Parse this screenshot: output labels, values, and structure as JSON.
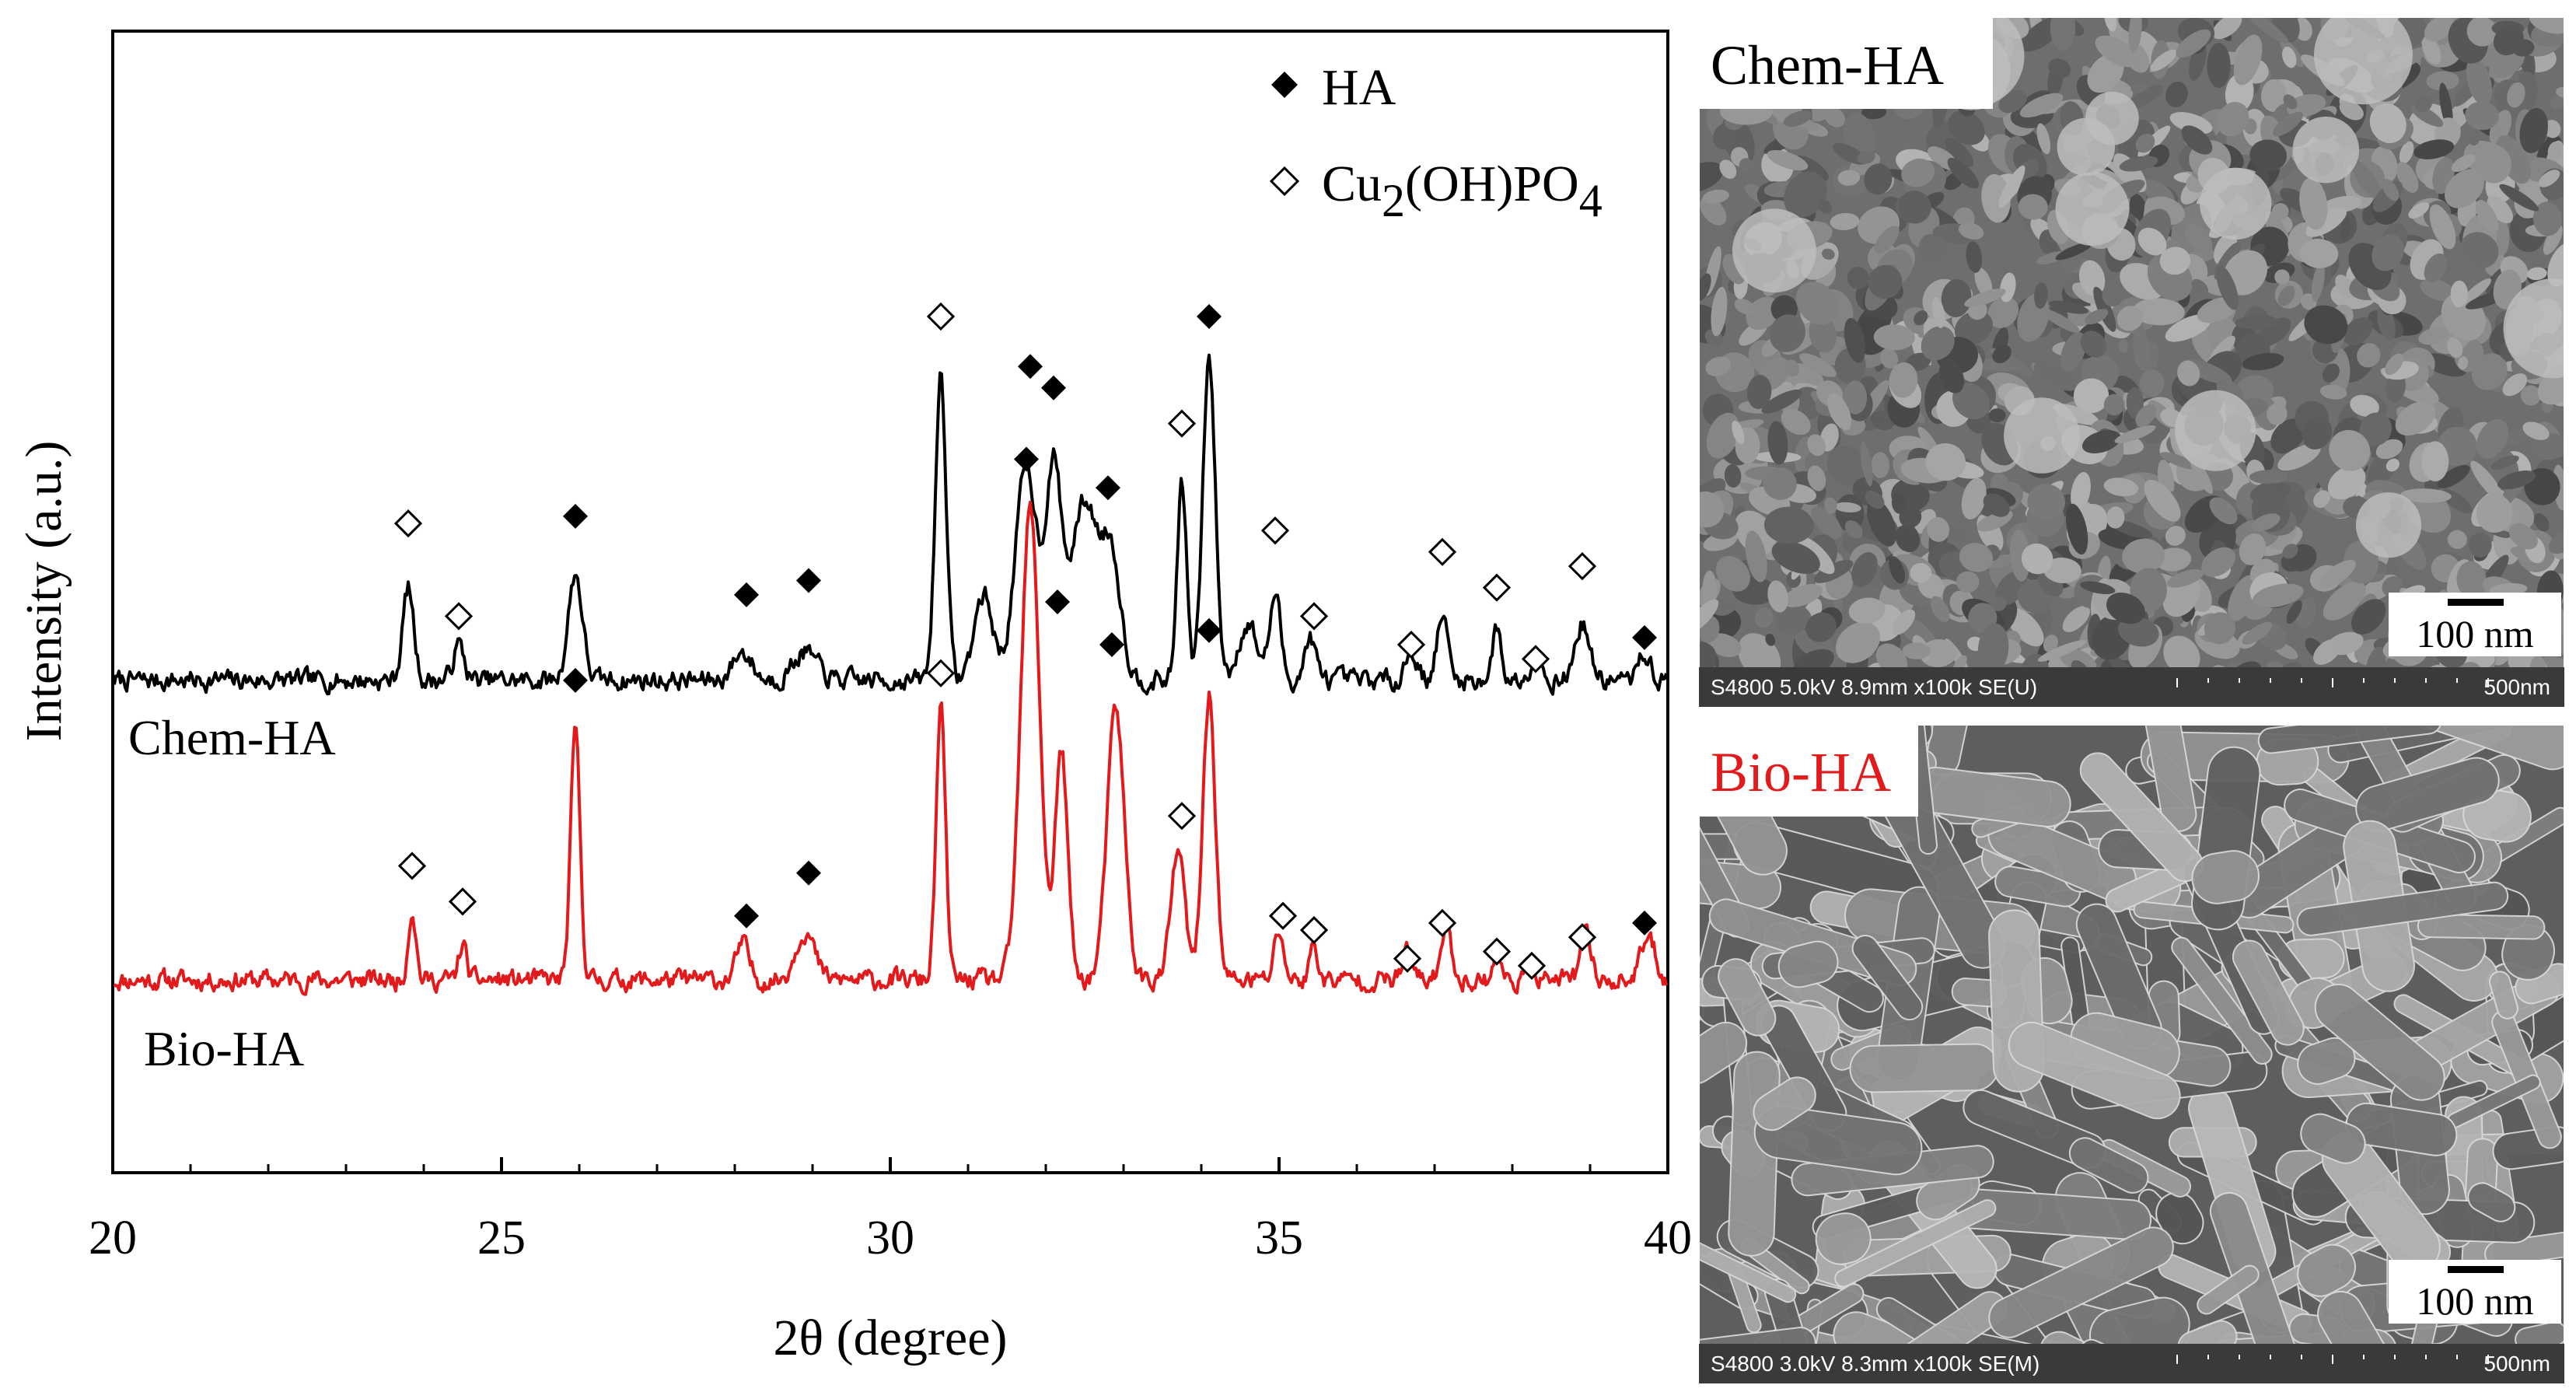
{
  "chart_data": {
    "type": "line",
    "xlabel": "2θ (degree)",
    "ylabel": "Intensity (a.u.)",
    "xlim": [
      20,
      40
    ],
    "ylim": [
      0,
      160
    ],
    "x_ticks": [
      20,
      25,
      30,
      35,
      40
    ],
    "y_ticks_shown": false,
    "grid": false,
    "legend_position": "top-right",
    "legend": [
      {
        "marker": "filled-diamond",
        "label": "HA",
        "color": "#000000"
      },
      {
        "marker": "open-diamond",
        "label_main": "Cu",
        "label_sub1": "2",
        "label_mid": "(OH)PO",
        "label_sub2": "4",
        "color": "#000000"
      }
    ],
    "series": [
      {
        "name": "Chem-HA",
        "color": "#000000",
        "baseline": 69,
        "noise": 2.5,
        "seed": 7,
        "peaks": [
          [
            23.8,
            13,
            0.07
          ],
          [
            24.45,
            5,
            0.07
          ],
          [
            25.95,
            15,
            0.09
          ],
          [
            28.1,
            4,
            0.12
          ],
          [
            28.9,
            4,
            0.15
          ],
          [
            30.65,
            43,
            0.07
          ],
          [
            31.2,
            12,
            0.12
          ],
          [
            31.75,
            30,
            0.14
          ],
          [
            32.1,
            28,
            0.1
          ],
          [
            32.5,
            25,
            0.18
          ],
          [
            32.85,
            16,
            0.12
          ],
          [
            33.75,
            28,
            0.06
          ],
          [
            34.1,
            45,
            0.08
          ],
          [
            34.6,
            8,
            0.12
          ],
          [
            34.95,
            12,
            0.07
          ],
          [
            35.4,
            6,
            0.07
          ],
          [
            36.7,
            4,
            0.08
          ],
          [
            37.1,
            9,
            0.07
          ],
          [
            37.8,
            7,
            0.06
          ],
          [
            38.3,
            4,
            0.07
          ],
          [
            38.9,
            8,
            0.09
          ],
          [
            39.7,
            4,
            0.07
          ]
        ],
        "markers": [
          {
            "x": 23.8,
            "type": "open",
            "y": 91
          },
          {
            "x": 24.45,
            "type": "open",
            "y": 78
          },
          {
            "x": 25.95,
            "type": "filled",
            "y": 92
          },
          {
            "x": 28.15,
            "type": "filled",
            "y": 81
          },
          {
            "x": 28.95,
            "type": "filled",
            "y": 83
          },
          {
            "x": 30.65,
            "type": "open",
            "y": 120
          },
          {
            "x": 31.8,
            "type": "filled",
            "y": 113
          },
          {
            "x": 32.1,
            "type": "filled",
            "y": 110
          },
          {
            "x": 32.8,
            "type": "filled",
            "y": 96
          },
          {
            "x": 33.75,
            "type": "open",
            "y": 105
          },
          {
            "x": 34.1,
            "type": "filled",
            "y": 120
          },
          {
            "x": 34.95,
            "type": "open",
            "y": 90
          },
          {
            "x": 35.45,
            "type": "open",
            "y": 78
          },
          {
            "x": 36.7,
            "type": "open",
            "y": 74
          },
          {
            "x": 37.1,
            "type": "open",
            "y": 87
          },
          {
            "x": 37.8,
            "type": "open",
            "y": 82
          },
          {
            "x": 38.3,
            "type": "open",
            "y": 72
          },
          {
            "x": 38.9,
            "type": "open",
            "y": 85
          },
          {
            "x": 39.7,
            "type": "filled",
            "y": 75
          }
        ]
      },
      {
        "name": "Bio-HA",
        "color": "#e31a1c",
        "baseline": 27,
        "noise": 2.5,
        "seed": 11,
        "peaks": [
          [
            23.85,
            10,
            0.05
          ],
          [
            24.5,
            5,
            0.05
          ],
          [
            25.95,
            35,
            0.06
          ],
          [
            28.1,
            5,
            0.08
          ],
          [
            28.9,
            7,
            0.12
          ],
          [
            30.65,
            38,
            0.06
          ],
          [
            31.8,
            66,
            0.12
          ],
          [
            32.2,
            32,
            0.08
          ],
          [
            32.9,
            38,
            0.11
          ],
          [
            33.7,
            18,
            0.09
          ],
          [
            34.1,
            40,
            0.08
          ],
          [
            35.0,
            7,
            0.06
          ],
          [
            35.45,
            5,
            0.05
          ],
          [
            36.65,
            4,
            0.06
          ],
          [
            37.15,
            7,
            0.07
          ],
          [
            37.8,
            4,
            0.05
          ],
          [
            38.25,
            3,
            0.05
          ],
          [
            38.95,
            6,
            0.07
          ],
          [
            39.75,
            6,
            0.09
          ]
        ],
        "markers": [
          {
            "x": 23.85,
            "type": "open",
            "y": 43
          },
          {
            "x": 24.5,
            "type": "open",
            "y": 38
          },
          {
            "x": 25.95,
            "type": "filled",
            "y": 69
          },
          {
            "x": 28.15,
            "type": "filled",
            "y": 36
          },
          {
            "x": 28.95,
            "type": "filled",
            "y": 42
          },
          {
            "x": 30.65,
            "type": "open",
            "y": 70
          },
          {
            "x": 31.75,
            "type": "filled",
            "y": 100
          },
          {
            "x": 32.15,
            "type": "filled",
            "y": 80
          },
          {
            "x": 32.85,
            "type": "filled",
            "y": 74
          },
          {
            "x": 33.75,
            "type": "open",
            "y": 50
          },
          {
            "x": 34.1,
            "type": "filled",
            "y": 76
          },
          {
            "x": 35.05,
            "type": "open",
            "y": 36
          },
          {
            "x": 35.45,
            "type": "open",
            "y": 34
          },
          {
            "x": 36.65,
            "type": "open",
            "y": 30
          },
          {
            "x": 37.1,
            "type": "open",
            "y": 35
          },
          {
            "x": 37.8,
            "type": "open",
            "y": 31
          },
          {
            "x": 38.25,
            "type": "open",
            "y": 29
          },
          {
            "x": 38.9,
            "type": "open",
            "y": 33
          },
          {
            "x": 39.7,
            "type": "filled",
            "y": 35
          }
        ]
      }
    ]
  },
  "sem_images": [
    {
      "label": "Chem-HA",
      "label_color": "#000000",
      "scale_bar": "100 nm",
      "info_left": "S4800 5.0kV 8.9mm x100k SE(U)",
      "info_right": "500nm",
      "morphology": "granular"
    },
    {
      "label": "Bio-HA",
      "label_color": "#e31a1c",
      "scale_bar": "100 nm",
      "info_left": "S4800 3.0kV 8.3mm x100k SE(M)",
      "info_right": "500nm",
      "morphology": "plates"
    }
  ],
  "colors": {
    "chem": "#000000",
    "bio": "#e31a1c"
  }
}
